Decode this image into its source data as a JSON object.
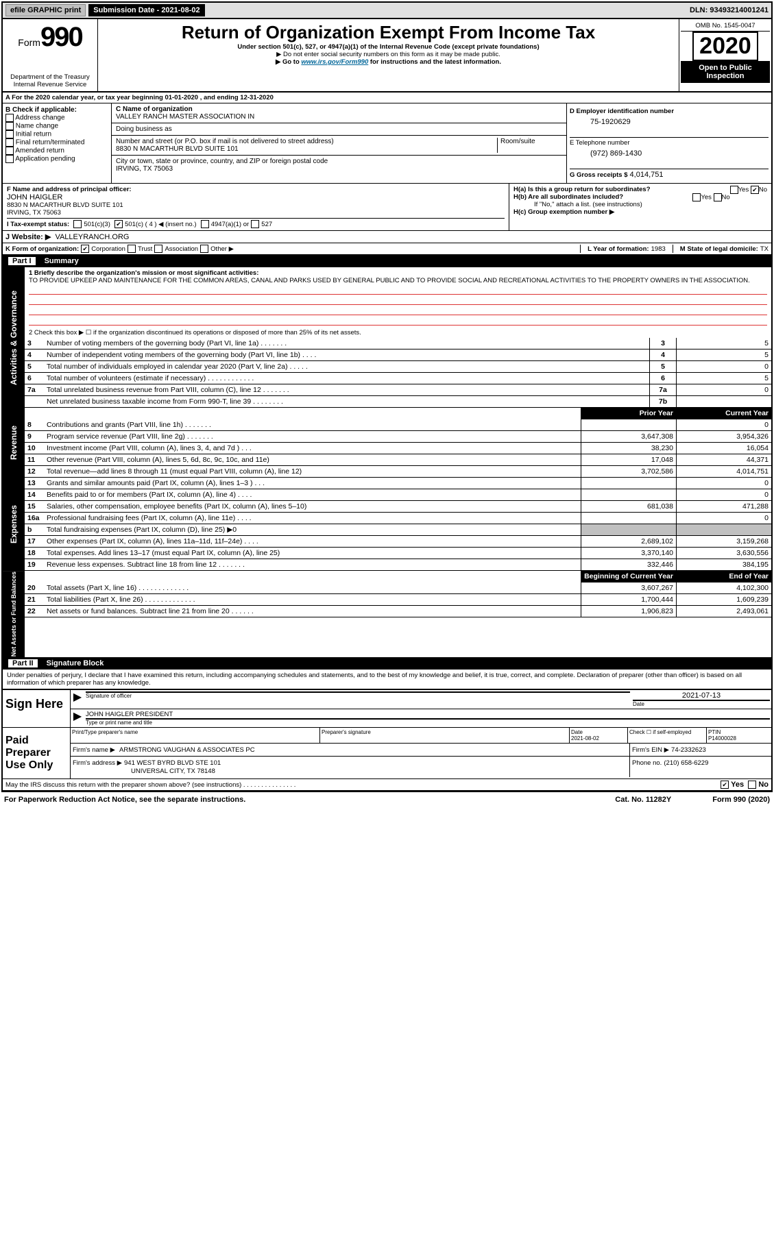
{
  "topbar": {
    "efile": "efile GRAPHIC print",
    "sub_label": "Submission Date - 2021-08-02",
    "dln": "DLN: 93493214001241"
  },
  "header": {
    "form_label": "Form",
    "form_num": "990",
    "dept": "Department of the Treasury",
    "irs": "Internal Revenue Service",
    "title": "Return of Organization Exempt From Income Tax",
    "subtitle1": "Under section 501(c), 527, or 4947(a)(1) of the Internal Revenue Code (except private foundations)",
    "subtitle2": "▶ Do not enter social security numbers on this form as it may be made public.",
    "subtitle3_a": "▶ Go to ",
    "subtitle3_link": "www.irs.gov/Form990",
    "subtitle3_b": " for instructions and the latest information.",
    "omb": "OMB No. 1545-0047",
    "year": "2020",
    "inspection": "Open to Public Inspection"
  },
  "rowA": "A For the 2020 calendar year, or tax year beginning 01-01-2020     , and ending 12-31-2020",
  "boxB": {
    "label": "B Check if applicable:",
    "items": [
      "Address change",
      "Name change",
      "Initial return",
      "Final return/terminated",
      "Amended return",
      "Application pending"
    ]
  },
  "boxC": {
    "name_label": "C Name of organization",
    "name": "VALLEY RANCH MASTER ASSOCIATION IN",
    "dba_label": "Doing business as",
    "addr_label": "Number and street (or P.O. box if mail is not delivered to street address)",
    "suite_label": "Room/suite",
    "addr": "8830 N MACARTHUR BLVD SUITE 101",
    "city_label": "City or town, state or province, country, and ZIP or foreign postal code",
    "city": "IRVING, TX   75063"
  },
  "boxD": {
    "ein_label": "D Employer identification number",
    "ein": "75-1920629",
    "tel_label": "E Telephone number",
    "tel": "(972) 869-1430",
    "gross_label": "G Gross receipts $",
    "gross": "4,014,751"
  },
  "boxF": {
    "label": "F  Name and address of principal officer:",
    "name": "JOHN HAIGLER",
    "addr1": "8830 N MACARTHUR BLVD SUITE 101",
    "addr2": "IRVING, TX   75063"
  },
  "boxH": {
    "ha": "H(a)  Is this a group return for subordinates?",
    "hb": "H(b)  Are all subordinates included?",
    "hb_note": "If \"No,\" attach a list. (see instructions)",
    "hc": "H(c)  Group exemption number ▶"
  },
  "boxI": {
    "label": "I   Tax-exempt status:",
    "c3": "501(c)(3)",
    "c": "501(c) ( 4 ) ◀ (insert no.)",
    "a4947": "4947(a)(1) or",
    "s527": "527"
  },
  "boxJ": {
    "label": "J   Website: ▶",
    "val": "VALLEYRANCH.ORG"
  },
  "boxK": {
    "label": "K Form of organization:",
    "corp": "Corporation",
    "trust": "Trust",
    "assoc": "Association",
    "other": "Other ▶"
  },
  "boxL": {
    "label": "L Year of formation:",
    "val": "1983"
  },
  "boxM": {
    "label": "M State of legal domicile:",
    "val": "TX"
  },
  "part1": {
    "header": "Summary",
    "part_label": "Part I",
    "q1_label": "1  Briefly describe the organization's mission or most significant activities:",
    "q1_text": "TO PROVIDE UPKEEP AND MAINTENANCE FOR THE COMMON AREAS, CANAL AND PARKS USED BY GENERAL PUBLIC AND TO PROVIDE SOCIAL AND RECREATIONAL ACTIVITIES TO THE PROPERTY OWNERS IN THE ASSOCIATION.",
    "side_gov": "Activities & Governance",
    "side_rev": "Revenue",
    "side_exp": "Expenses",
    "side_net": "Net Assets or Fund Balances",
    "q2": "2  Check this box ▶ ☐  if the organization discontinued its operations or disposed of more than 25% of its net assets.",
    "prior": "Prior Year",
    "current": "Current Year",
    "begin": "Beginning of Current Year",
    "end": "End of Year",
    "rows_gov": [
      {
        "n": "3",
        "t": "Number of voting members of the governing body (Part VI, line 1a)  .    .    .    .    .    .    .",
        "box": "3",
        "v": "5"
      },
      {
        "n": "4",
        "t": "Number of independent voting members of the governing body (Part VI, line 1b)    .    .    .    .",
        "box": "4",
        "v": "5"
      },
      {
        "n": "5",
        "t": "Total number of individuals employed in calendar year 2020 (Part V, line 2a)   .    .    .    .    .",
        "box": "5",
        "v": "0"
      },
      {
        "n": "6",
        "t": "Total number of volunteers (estimate if necessary)    .    .    .    .    .    .    .    .    .    .    .    .",
        "box": "6",
        "v": "5"
      },
      {
        "n": "7a",
        "t": "Total unrelated business revenue from Part VIII, column (C), line 12    .    .    .    .    .    .    .",
        "box": "7a",
        "v": "0"
      },
      {
        "n": "",
        "t": "Net unrelated business taxable income from Form 990-T, line 39    .    .    .    .    .    .    .    .",
        "box": "7b",
        "v": ""
      }
    ],
    "rows_rev": [
      {
        "n": "8",
        "t": "Contributions and grants (Part VIII, line 1h)    .    .    .    .    .    .    .",
        "p": "",
        "c": "0"
      },
      {
        "n": "9",
        "t": "Program service revenue (Part VIII, line 2g)    .    .    .    .    .    .    .",
        "p": "3,647,308",
        "c": "3,954,326"
      },
      {
        "n": "10",
        "t": "Investment income (Part VIII, column (A), lines 3, 4, and 7d )    .    .    .",
        "p": "38,230",
        "c": "16,054"
      },
      {
        "n": "11",
        "t": "Other revenue (Part VIII, column (A), lines 5, 6d, 8c, 9c, 10c, and 11e)",
        "p": "17,048",
        "c": "44,371"
      },
      {
        "n": "12",
        "t": "Total revenue—add lines 8 through 11 (must equal Part VIII, column (A), line 12)",
        "p": "3,702,586",
        "c": "4,014,751"
      }
    ],
    "rows_exp": [
      {
        "n": "13",
        "t": "Grants and similar amounts paid (Part IX, column (A), lines 1–3 )    .    .    .",
        "p": "",
        "c": "0"
      },
      {
        "n": "14",
        "t": "Benefits paid to or for members (Part IX, column (A), line 4)    .    .    .    .",
        "p": "",
        "c": "0"
      },
      {
        "n": "15",
        "t": "Salaries, other compensation, employee benefits (Part IX, column (A), lines 5–10)",
        "p": "681,038",
        "c": "471,288"
      },
      {
        "n": "16a",
        "t": "Professional fundraising fees (Part IX, column (A), line 11e)    .    .    .    .",
        "p": "",
        "c": "0"
      },
      {
        "n": "b",
        "t": "Total fundraising expenses (Part IX, column (D), line 25) ▶0",
        "p": "GRAY",
        "c": "GRAY"
      },
      {
        "n": "17",
        "t": "Other expenses (Part IX, column (A), lines 11a–11d, 11f–24e)    .    .    .    .",
        "p": "2,689,102",
        "c": "3,159,268"
      },
      {
        "n": "18",
        "t": "Total expenses. Add lines 13–17 (must equal Part IX, column (A), line 25)",
        "p": "3,370,140",
        "c": "3,630,556"
      },
      {
        "n": "19",
        "t": "Revenue less expenses. Subtract line 18 from line 12   .    .    .    .    .    .    .",
        "p": "332,446",
        "c": "384,195"
      }
    ],
    "rows_net": [
      {
        "n": "20",
        "t": "Total assets (Part X, line 16)   .    .    .    .    .    .    .    .    .    .    .    .    .",
        "p": "3,607,267",
        "c": "4,102,300"
      },
      {
        "n": "21",
        "t": "Total liabilities (Part X, line 26)   .    .    .    .    .    .    .    .    .    .    .    .    .",
        "p": "1,700,444",
        "c": "1,609,239"
      },
      {
        "n": "22",
        "t": "Net assets or fund balances. Subtract line 21 from line 20   .    .    .    .    .    .",
        "p": "1,906,823",
        "c": "2,493,061"
      }
    ]
  },
  "part2": {
    "label": "Part II",
    "header": "Signature Block",
    "decl": "Under penalties of perjury, I declare that I have examined this return, including accompanying schedules and statements, and to the best of my knowledge and belief, it is true, correct, and complete. Declaration of preparer (other than officer) is based on all information of which preparer has any knowledge.",
    "sign_here": "Sign Here",
    "sig_officer": "Signature of officer",
    "sig_date": "2021-07-13",
    "date_label": "Date",
    "officer_name": "JOHN HAIGLER  PRESIDENT",
    "officer_name_label": "Type or print name and title",
    "paid_label": "Paid Preparer Use Only",
    "prep_name_label": "Print/Type preparer's name",
    "prep_sig_label": "Preparer's signature",
    "prep_date_label": "Date",
    "prep_date": "2021-08-02",
    "check_self": "Check ☐ if self-employed",
    "ptin_label": "PTIN",
    "ptin": "P14000028",
    "firm_name_label": "Firm's name    ▶",
    "firm_name": "ARMSTRONG VAUGHAN & ASSOCIATES PC",
    "firm_ein_label": "Firm's EIN ▶",
    "firm_ein": "74-2332623",
    "firm_addr_label": "Firm's address ▶",
    "firm_addr1": "941 WEST BYRD BLVD STE 101",
    "firm_addr2": "UNIVERSAL CITY, TX   78148",
    "phone_label": "Phone no.",
    "phone": "(210) 658-6229",
    "discuss": "May the IRS discuss this return with the preparer shown above? (see instructions)    .    .    .    .    .    .    .    .    .    .    .    .    .    .    .",
    "yes": "Yes",
    "no": "No"
  },
  "footer": {
    "left": "For Paperwork Reduction Act Notice, see the separate instructions.",
    "mid": "Cat. No. 11282Y",
    "right": "Form 990 (2020)"
  }
}
